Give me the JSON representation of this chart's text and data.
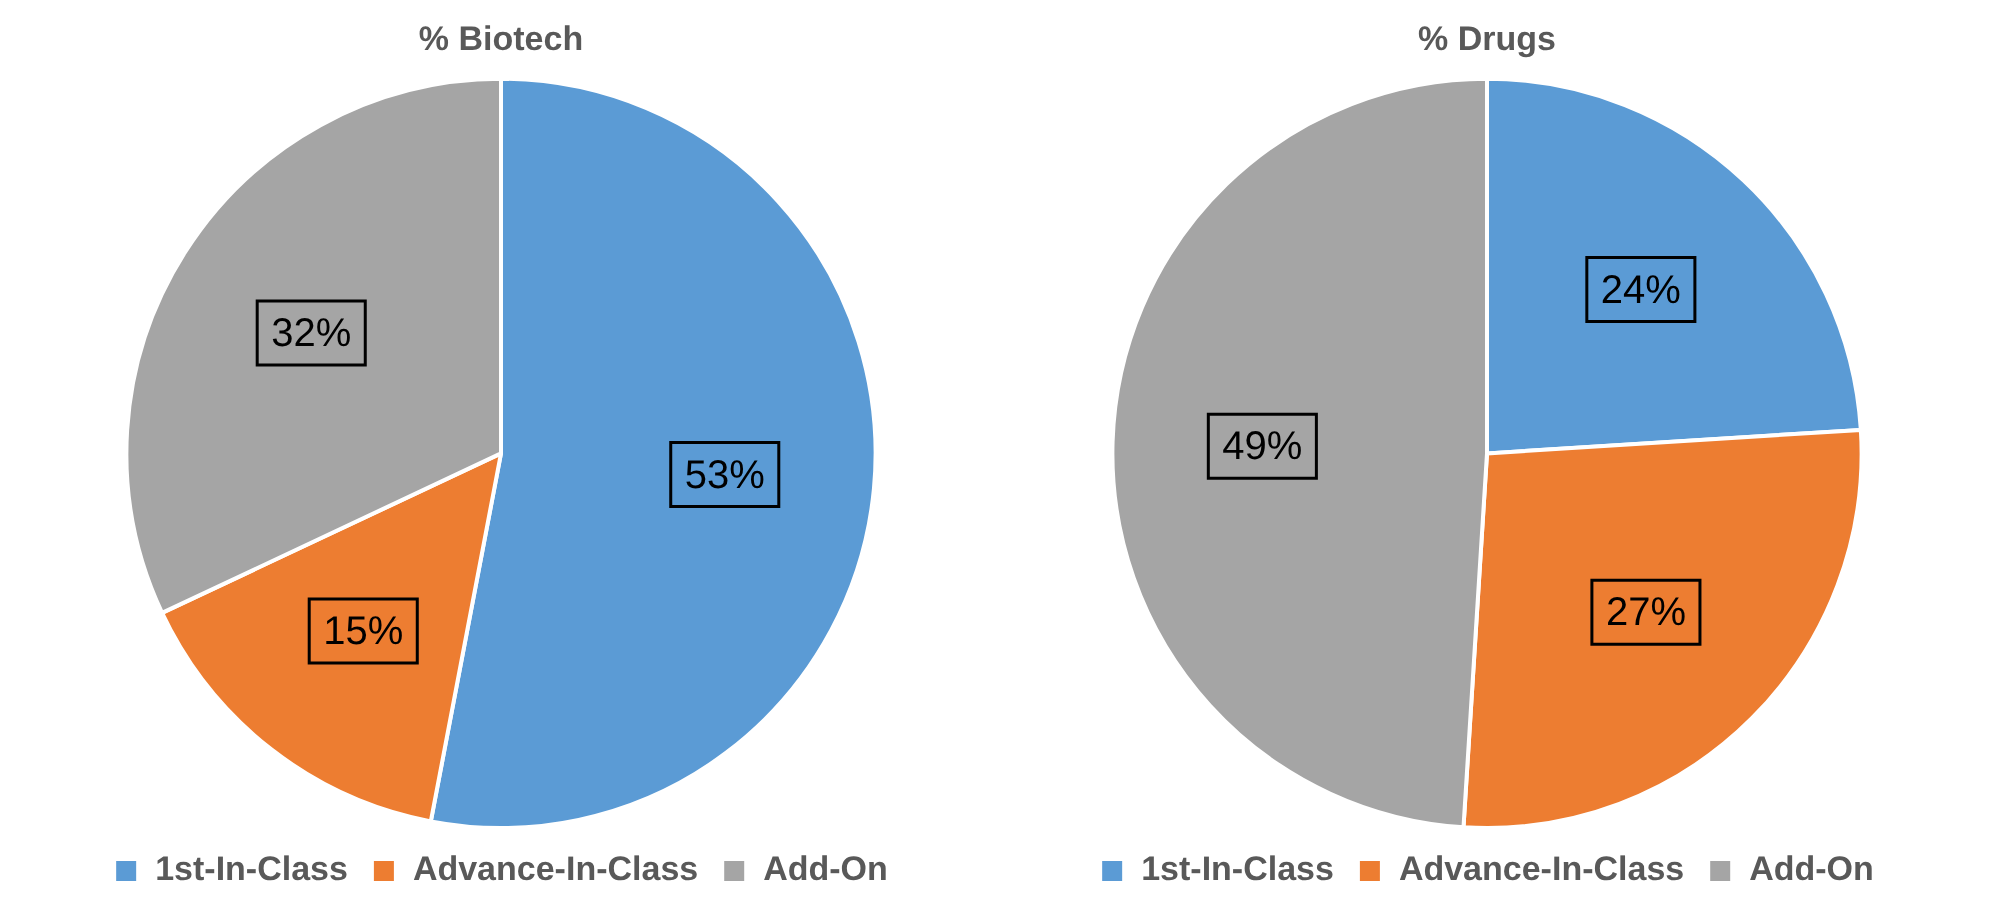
{
  "chart_data": [
    {
      "type": "pie",
      "title": "% Biotech",
      "categories": [
        "1st-In-Class",
        "Advance-In-Class",
        "Add-On"
      ],
      "values": [
        53,
        15,
        32
      ],
      "colors": [
        "#5b9bd5",
        "#ed7d31",
        "#a5a5a5"
      ],
      "value_labels": [
        "53%",
        "15%",
        "32%"
      ],
      "legend": "bottom"
    },
    {
      "type": "pie",
      "title": "% Drugs",
      "categories": [
        "1st-In-Class",
        "Advance-In-Class",
        "Add-On"
      ],
      "values": [
        24,
        27,
        49
      ],
      "colors": [
        "#5b9bd5",
        "#ed7d31",
        "#a5a5a5"
      ],
      "value_labels": [
        "24%",
        "27%",
        "49%"
      ],
      "legend": "bottom"
    }
  ]
}
